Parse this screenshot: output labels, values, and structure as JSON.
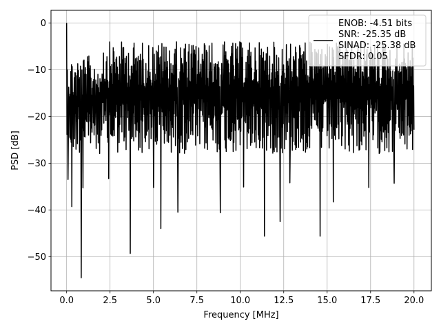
{
  "chart_data": {
    "type": "line",
    "title": "",
    "xlabel": "Frequency [MHz]",
    "ylabel": "PSD [dB]",
    "xlim": [
      -0.9,
      21.0
    ],
    "ylim": [
      -57.3,
      2.7
    ],
    "xticks": [
      0.0,
      2.5,
      5.0,
      7.5,
      10.0,
      12.5,
      15.0,
      17.5,
      20.0
    ],
    "xtick_labels": [
      "0.0",
      "2.5",
      "5.0",
      "7.5",
      "10.0",
      "12.5",
      "15.0",
      "17.5",
      "20.0"
    ],
    "yticks": [
      0,
      -10,
      -20,
      -30,
      -40,
      -50
    ],
    "ytick_labels": [
      "0",
      "−10",
      "−20",
      "−30",
      "−40",
      "−50"
    ],
    "grid": true,
    "legend_position": "top-right",
    "legend": {
      "lines": [
        "ENOB: -4.51 bits",
        "SNR: -25.35 dB",
        "SINAD: -25.38 dB",
        "SFDR: 0.05"
      ]
    },
    "series": [
      {
        "color": "#000000",
        "x_start": 0.0,
        "x_end": 20.0,
        "points": 1000,
        "peak_value": 0.0,
        "peak_x": 0.0,
        "typical_max": -5,
        "typical_min": -28,
        "notable_minima": [
          {
            "x": 0.09,
            "y": -33.5
          },
          {
            "x": 0.3,
            "y": -39.3
          },
          {
            "x": 0.84,
            "y": -54.5
          },
          {
            "x": 0.95,
            "y": -35.3
          },
          {
            "x": 2.43,
            "y": -33.3
          },
          {
            "x": 3.67,
            "y": -49.3
          },
          {
            "x": 5.0,
            "y": -35.2
          },
          {
            "x": 5.43,
            "y": -44.0
          },
          {
            "x": 6.4,
            "y": -40.5
          },
          {
            "x": 8.85,
            "y": -40.6
          },
          {
            "x": 10.2,
            "y": -35.1
          },
          {
            "x": 11.4,
            "y": -45.6
          },
          {
            "x": 12.3,
            "y": -42.5
          },
          {
            "x": 12.85,
            "y": -34.2
          },
          {
            "x": 14.6,
            "y": -45.6
          },
          {
            "x": 15.35,
            "y": -38.3
          },
          {
            "x": 17.4,
            "y": -35.2
          },
          {
            "x": 18.85,
            "y": -34.3
          }
        ]
      }
    ]
  }
}
